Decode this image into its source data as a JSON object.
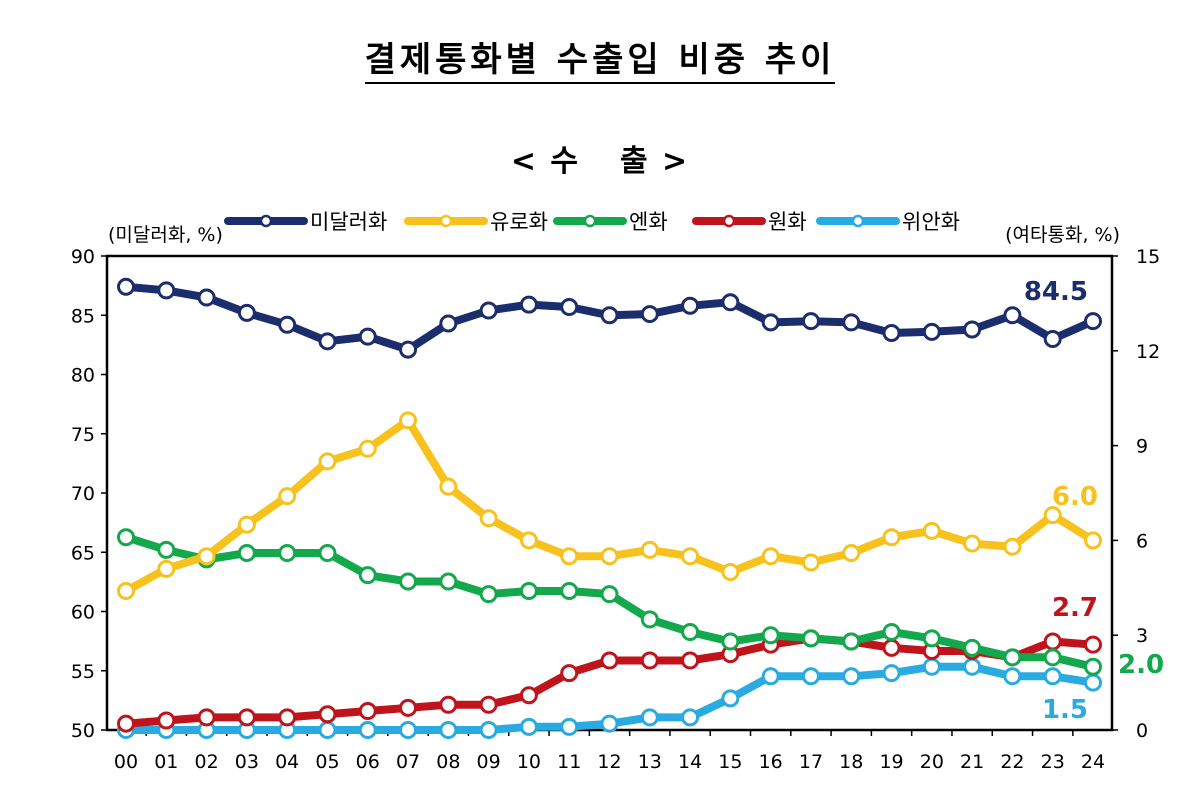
{
  "title": "결제통화별 수출입 비중 추이",
  "subtitle_left": "< 수",
  "subtitle_right": "출 >",
  "chart_data": {
    "type": "line",
    "title": "결제통화별 수출입 비중 추이",
    "subtitle": "< 수 출 >",
    "x": [
      "00",
      "01",
      "02",
      "03",
      "04",
      "05",
      "06",
      "07",
      "08",
      "09",
      "10",
      "11",
      "12",
      "13",
      "14",
      "15",
      "16",
      "17",
      "18",
      "19",
      "20",
      "21",
      "22",
      "23",
      "24"
    ],
    "left_axis": {
      "label": "(미달러화, %)",
      "ylim": [
        50,
        90
      ],
      "ticks": [
        "50",
        "55",
        "60",
        "65",
        "70",
        "75",
        "80",
        "85",
        "90"
      ]
    },
    "right_axis": {
      "label": "(여타통화, %)",
      "ylim": [
        0,
        15
      ],
      "ticks": [
        "0",
        "3",
        "6",
        "9",
        "12",
        "15"
      ]
    },
    "grid": false,
    "legend_position": "top",
    "series": [
      {
        "name": "미달러화",
        "axis": "left",
        "color": "#1c2d6e",
        "values": [
          87.4,
          87.1,
          86.5,
          85.2,
          84.2,
          82.8,
          83.2,
          82.1,
          84.3,
          85.4,
          85.9,
          85.7,
          85.0,
          85.1,
          85.8,
          86.1,
          84.4,
          84.5,
          84.4,
          83.5,
          83.6,
          83.8,
          85.0,
          83.0,
          84.5
        ],
        "end_label": "84.5"
      },
      {
        "name": "유로화",
        "axis": "right",
        "color": "#f7c21e",
        "values": [
          4.4,
          5.1,
          5.5,
          6.5,
          7.4,
          8.5,
          8.9,
          9.8,
          7.7,
          6.7,
          6.0,
          5.5,
          5.5,
          5.7,
          5.5,
          5.0,
          5.5,
          5.3,
          5.6,
          6.1,
          6.3,
          5.9,
          5.8,
          6.8,
          6.0
        ],
        "end_label": "6.0"
      },
      {
        "name": "엔화",
        "axis": "right",
        "color": "#12a84b",
        "values": [
          6.1,
          5.7,
          5.4,
          5.6,
          5.6,
          5.6,
          4.9,
          4.7,
          4.7,
          4.3,
          4.4,
          4.4,
          4.3,
          3.5,
          3.1,
          2.8,
          3.0,
          2.9,
          2.8,
          3.1,
          2.9,
          2.6,
          2.3,
          2.3,
          2.0
        ],
        "end_label": "2.0"
      },
      {
        "name": "원화",
        "axis": "right",
        "color": "#c0141c",
        "values": [
          0.2,
          0.3,
          0.4,
          0.4,
          0.4,
          0.5,
          0.6,
          0.7,
          0.8,
          0.8,
          1.1,
          1.8,
          2.2,
          2.2,
          2.2,
          2.4,
          2.7,
          2.9,
          2.8,
          2.6,
          2.5,
          2.5,
          2.3,
          2.8,
          2.7
        ],
        "end_label": "2.7"
      },
      {
        "name": "위안화",
        "axis": "right",
        "color": "#29abe2",
        "values": [
          0.0,
          0.0,
          0.0,
          0.0,
          0.0,
          0.0,
          0.0,
          0.0,
          0.0,
          0.0,
          0.1,
          0.1,
          0.2,
          0.4,
          0.4,
          1.0,
          1.7,
          1.7,
          1.7,
          1.8,
          2.0,
          2.0,
          1.7,
          1.7,
          1.5
        ],
        "end_label": "1.5"
      }
    ]
  }
}
